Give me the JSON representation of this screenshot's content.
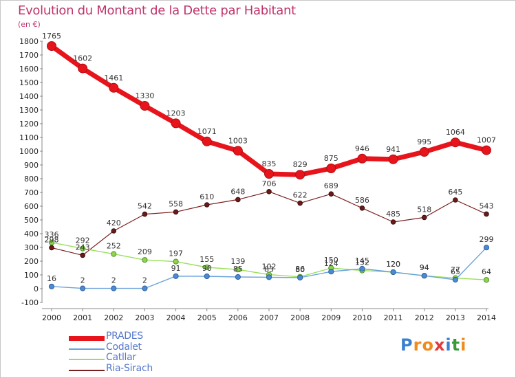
{
  "title": "Evolution du Montant de la Dette par Habitant",
  "unit_label": "(en €)",
  "logo": {
    "letters": [
      "P",
      "r",
      "o",
      "x",
      "i",
      "t",
      "i"
    ],
    "colors": [
      "#3a7fd0",
      "#f08a1c",
      "#f08a1c",
      "#e23b3b",
      "#3a7fd0",
      "#3a9a3a",
      "#f08a1c"
    ]
  },
  "chart_data": {
    "type": "line",
    "title": "Evolution du Montant de la Dette par Habitant",
    "ylabel": "(en €)",
    "xlabel": "",
    "x": [
      "2000",
      "2001",
      "2002",
      "2003",
      "2004",
      "2005",
      "2006",
      "2007",
      "2008",
      "2009",
      "2010",
      "2011",
      "2012",
      "2013",
      "2014"
    ],
    "ylim": [
      -100,
      1800
    ],
    "yticks": [
      -100,
      0,
      100,
      200,
      300,
      400,
      500,
      600,
      700,
      800,
      900,
      1000,
      1100,
      1200,
      1300,
      1400,
      1500,
      1600,
      1700,
      1800
    ],
    "grid": false,
    "legend": "bottom-left",
    "series": [
      {
        "name": "PRADES",
        "color": "#e8141b",
        "values": [
          1765,
          1602,
          1461,
          1330,
          1203,
          1071,
          1003,
          835,
          829,
          875,
          946,
          941,
          995,
          1064,
          1007
        ]
      },
      {
        "name": "Codalet",
        "color": "#6aa2dc",
        "values": [
          16,
          2,
          2,
          2,
          91,
          90,
          85,
          83,
          80,
          124,
          145,
          120,
          94,
          65,
          299
        ]
      },
      {
        "name": "Catllar",
        "color": "#99e05a",
        "values": [
          336,
          292,
          252,
          209,
          197,
          155,
          139,
          102,
          86,
          150,
          132,
          120,
          94,
          77,
          64
        ]
      },
      {
        "name": "Ria-Sirach",
        "color": "#7a1f1f",
        "values": [
          298,
          243,
          420,
          542,
          558,
          610,
          648,
          706,
          622,
          689,
          586,
          485,
          518,
          645,
          543
        ]
      }
    ]
  }
}
